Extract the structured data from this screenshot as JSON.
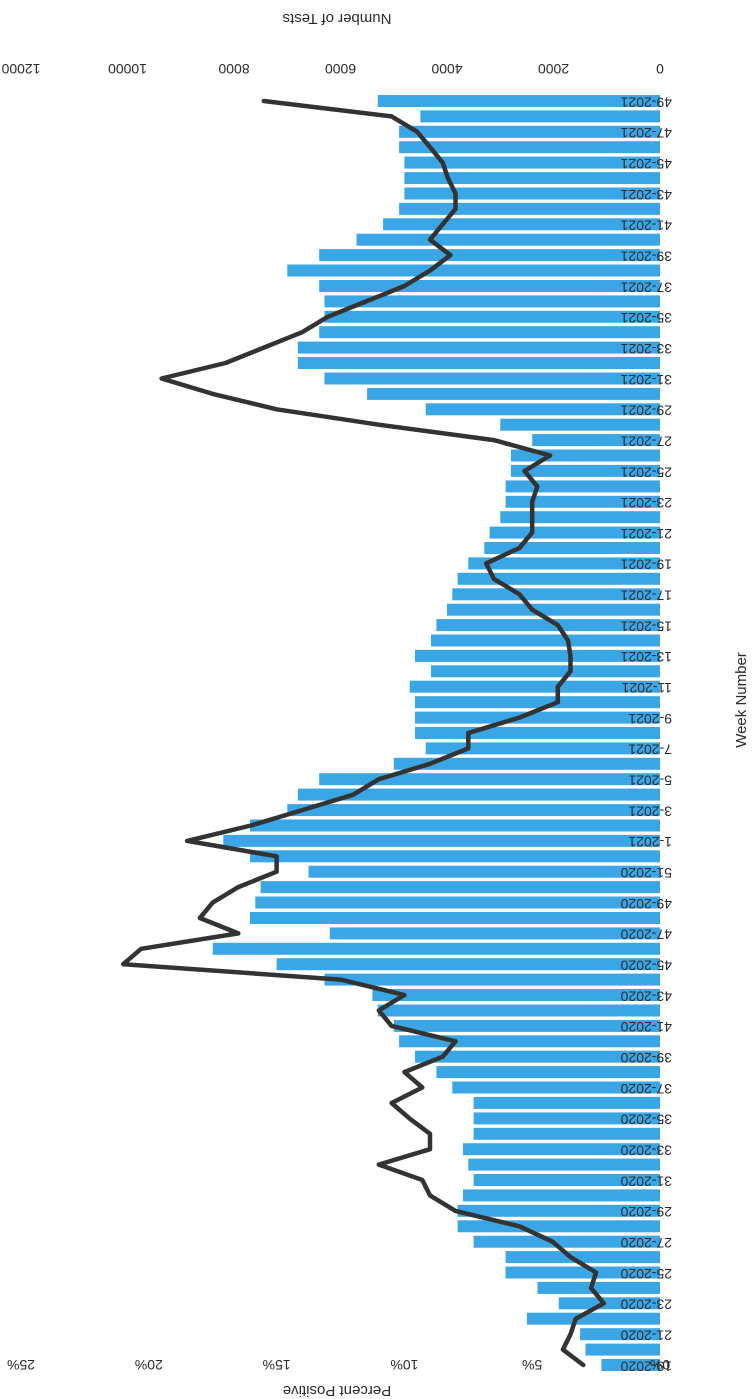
{
  "chart_data": {
    "type": "bar",
    "orientation": "rotated-90",
    "xlabel": "Week Number",
    "ylabel_left": "Percent Positive",
    "ylabel_right": "Number of Tests",
    "percent_ticks": [
      "0%",
      "5%",
      "10%",
      "15%",
      "20%",
      "25%"
    ],
    "tests_ticks": [
      "0",
      "2000",
      "4000",
      "6000",
      "8000",
      "10000",
      "12000"
    ],
    "percent_ylim": [
      0,
      25
    ],
    "tests_ylim": [
      0,
      12000
    ],
    "colors": {
      "bars": "#3aa6e6",
      "line": "#333333"
    },
    "categories": [
      "19-2020",
      "20-2020",
      "21-2020",
      "22-2020",
      "23-2020",
      "24-2020",
      "25-2020",
      "26-2020",
      "27-2020",
      "28-2020",
      "29-2020",
      "30-2020",
      "31-2020",
      "32-2020",
      "33-2020",
      "34-2020",
      "35-2020",
      "36-2020",
      "37-2020",
      "38-2020",
      "39-2020",
      "40-2020",
      "41-2020",
      "42-2020",
      "43-2020",
      "44-2020",
      "45-2020",
      "46-2020",
      "47-2020",
      "48-2020",
      "49-2020",
      "50-2020",
      "51-2020",
      "52-2020",
      "1-2021",
      "2-2021",
      "3-2021",
      "4-2021",
      "5-2021",
      "6-2021",
      "7-2021",
      "8-2021",
      "9-2021",
      "10-2021",
      "11-2021",
      "12-2021",
      "13-2021",
      "14-2021",
      "15-2021",
      "16-2021",
      "17-2021",
      "18-2021",
      "19-2021",
      "20-2021",
      "21-2021",
      "22-2021",
      "23-2021",
      "24-2021",
      "25-2021",
      "26-2021",
      "27-2021",
      "28-2021",
      "29-2021",
      "30-2021",
      "31-2021",
      "32-2021",
      "33-2021",
      "34-2021",
      "35-2021",
      "36-2021",
      "37-2021",
      "38-2021",
      "39-2021",
      "40-2021",
      "41-2021",
      "42-2021",
      "43-2021",
      "44-2021",
      "45-2021",
      "46-2021",
      "47-2021",
      "48-2021",
      "49-2021"
    ],
    "visible_category_labels": [
      "19-2020",
      "21-2020",
      "23-2020",
      "25-2020",
      "27-2020",
      "29-2020",
      "31-2020",
      "33-2020",
      "35-2020",
      "37-2020",
      "39-2020",
      "41-2020",
      "43-2020",
      "45-2020",
      "47-2020",
      "49-2020",
      "51-2020",
      "1-2021",
      "3-2021",
      "5-2021",
      "7-2021",
      "9-2021",
      "11-2021",
      "13-2021",
      "15-2021",
      "17-2021",
      "19-2021",
      "21-2021",
      "23-2021",
      "25-2021",
      "27-2021",
      "29-2021",
      "31-2021",
      "33-2021",
      "35-2021",
      "37-2021",
      "39-2021",
      "41-2021",
      "43-2021",
      "45-2021",
      "47-2021",
      "49-2021"
    ],
    "series": [
      {
        "kind": "bar",
        "axis": "tests",
        "values": [
          1100,
          1400,
          1500,
          2500,
          1900,
          2300,
          2900,
          2900,
          3500,
          3800,
          3800,
          3700,
          3500,
          3600,
          3700,
          3500,
          3500,
          3500,
          3900,
          4200,
          4600,
          4900,
          5000,
          5300,
          5400,
          6300,
          7200,
          8400,
          6200,
          7700,
          7600,
          7500,
          6600,
          7700,
          8200,
          7700,
          7000,
          6800,
          6400,
          5000,
          4400,
          4600,
          4600,
          4600,
          4700,
          4300,
          4600,
          4300,
          4200,
          4000,
          3900,
          3800,
          3600,
          3300,
          3200,
          3000,
          2900,
          2900,
          2800,
          2800,
          2400,
          3000,
          4400,
          5500,
          6300,
          6800,
          6800,
          6400,
          6300,
          6300,
          6400,
          7000,
          6400,
          5700,
          5200,
          4900,
          4800,
          4800,
          4800,
          4900,
          4900,
          4500,
          5300
        ]
      },
      {
        "kind": "line",
        "axis": "percent",
        "values": [
          3.0,
          3.8,
          3.5,
          3.3,
          2.2,
          2.7,
          2.5,
          3.5,
          4.2,
          5.5,
          8.0,
          9.0,
          9.3,
          11.0,
          9.0,
          9.0,
          9.8,
          10.5,
          9.3,
          10.0,
          8.5,
          8.0,
          10.5,
          11.0,
          10.0,
          12.5,
          21.0,
          20.3,
          16.5,
          18.0,
          17.5,
          16.5,
          15.0,
          15.0,
          18.5,
          16.0,
          14.0,
          12.0,
          11.0,
          9.0,
          7.5,
          7.5,
          5.5,
          4.0,
          4.0,
          3.5,
          3.5,
          3.6,
          4.0,
          5.0,
          5.5,
          6.5,
          6.8,
          5.5,
          5.0,
          5.0,
          5.0,
          4.8,
          5.3,
          4.3,
          6.5,
          11.0,
          15.0,
          17.5,
          19.5,
          17.0,
          15.5,
          14.0,
          13.0,
          11.5,
          10.0,
          9.0,
          8.2,
          9.0,
          8.5,
          8.0,
          8.0,
          8.3,
          8.5,
          9.0,
          9.5,
          10.5,
          15.5
        ]
      }
    ],
    "legend": "none",
    "grid": false
  }
}
